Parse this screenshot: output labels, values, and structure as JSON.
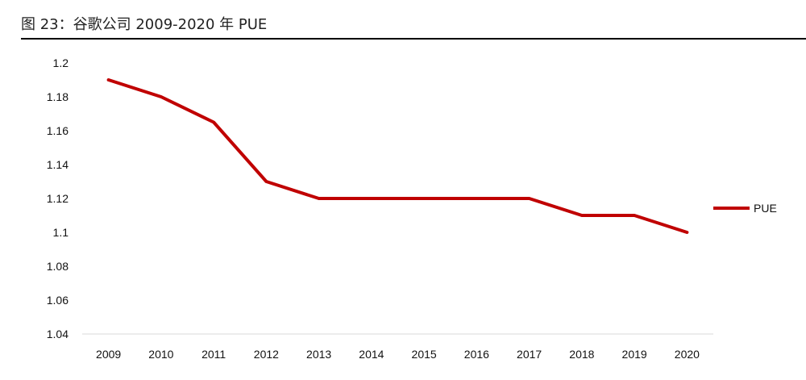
{
  "caption": {
    "text": "图 23：谷歌公司 2009-2020 年 PUE"
  },
  "chart_data": {
    "type": "line",
    "title": "",
    "xlabel": "",
    "ylabel": "",
    "x": [
      "2009",
      "2010",
      "2011",
      "2012",
      "2013",
      "2014",
      "2015",
      "2016",
      "2017",
      "2018",
      "2019",
      "2020"
    ],
    "series": [
      {
        "name": "PUE",
        "values": [
          1.19,
          1.18,
          1.165,
          1.13,
          1.12,
          1.12,
          1.12,
          1.12,
          1.12,
          1.11,
          1.11,
          1.1
        ],
        "color": "#C00000"
      }
    ],
    "ylim": [
      1.04,
      1.2
    ],
    "yticks": [
      "1.2",
      "1.18",
      "1.16",
      "1.14",
      "1.12",
      "1.1",
      "1.08",
      "1.06",
      "1.04"
    ],
    "grid": false,
    "legend": "right",
    "axis_color": "#D9D9D9"
  }
}
